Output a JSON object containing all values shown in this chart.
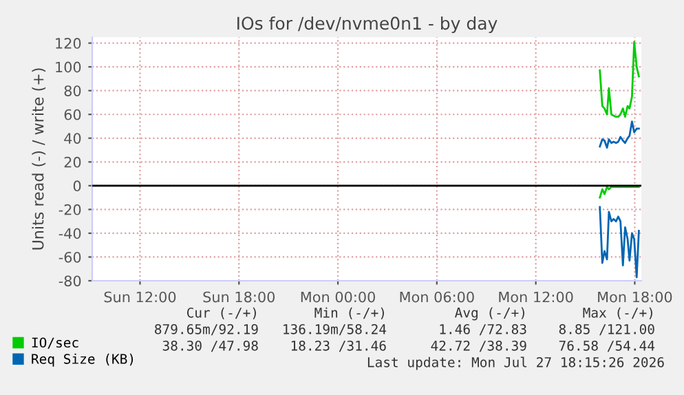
{
  "chart_data": {
    "type": "line",
    "title": "IOs for /dev/nvme0n1 - by day",
    "ylabel": "Units read (-) / write (+)",
    "x": [
      "2026-07-27T15:53",
      "2026-07-27T16:02",
      "2026-07-27T16:10",
      "2026-07-27T16:19",
      "2026-07-27T16:26",
      "2026-07-27T16:35",
      "2026-07-27T16:43",
      "2026-07-27T16:52",
      "2026-07-27T17:00",
      "2026-07-27T17:08",
      "2026-07-27T17:17",
      "2026-07-27T17:25",
      "2026-07-27T17:34",
      "2026-07-27T17:41",
      "2026-07-27T17:50",
      "2026-07-27T17:58",
      "2026-07-27T18:07",
      "2026-07-27T18:15"
    ],
    "series": [
      {
        "name": "IO/sec",
        "color": "#00cc00",
        "values": [
          97,
          67,
          65,
          60,
          82,
          60,
          59,
          58,
          58,
          60,
          65,
          58,
          67,
          65,
          75,
          121,
          100,
          92
        ]
      },
      {
        "color": "#00cc00",
        "values": [
          -10,
          -3,
          -7,
          -1,
          -3,
          -1,
          -1,
          -1,
          -1,
          -1,
          -1,
          -1,
          -1,
          -1,
          -1,
          -1,
          -1,
          -1
        ]
      },
      {
        "name": "Req Size (KB)",
        "color": "#0066b3",
        "values": [
          33,
          39,
          38,
          32,
          39,
          36,
          37,
          36,
          37,
          41,
          38,
          36,
          40,
          42,
          54,
          45,
          48,
          48
        ]
      },
      {
        "color": "#0066b3",
        "values": [
          -18,
          -65,
          -55,
          -62,
          -22,
          -30,
          -28,
          -30,
          -26,
          -30,
          -67,
          -35,
          -45,
          -63,
          -40,
          -45,
          -77,
          -38
        ]
      }
    ],
    "xlim": [
      "2026-07-26T09:06",
      "2026-07-27T18:24"
    ],
    "xticks": [
      {
        "value": "2026-07-26T12:00",
        "label": "Sun 12:00"
      },
      {
        "value": "2026-07-26T18:00",
        "label": "Sun 18:00"
      },
      {
        "value": "2026-07-27T00:00",
        "label": "Mon 00:00"
      },
      {
        "value": "2026-07-27T06:00",
        "label": "Mon 06:00"
      },
      {
        "value": "2026-07-27T12:00",
        "label": "Mon 12:00"
      },
      {
        "value": "2026-07-27T18:00",
        "label": "Mon 18:00"
      }
    ],
    "ylim": [
      -80,
      125
    ],
    "yticks": [
      -80,
      -60,
      -40,
      -20,
      0,
      20,
      40,
      60,
      80,
      100,
      120
    ],
    "ref_lines": [
      {
        "axis": "y",
        "value": 0,
        "color": "#000000"
      }
    ],
    "grid": true,
    "legend": "bottom left",
    "line_style": "solid",
    "marker": "none",
    "annotations": [
      "Cur (-/+)",
      "Min (-/+)",
      "Avg (-/+)",
      "Max (-/+)",
      "879.65m/92.19",
      "136.19m/58.24",
      "1.46 /72.83",
      "8.85 /121.00",
      "38.30 /47.98",
      "18.23 /31.46",
      "42.72 /38.39",
      "76.58 /54.44",
      "Last update: Mon Jul 27 18:15:26 2026"
    ]
  }
}
